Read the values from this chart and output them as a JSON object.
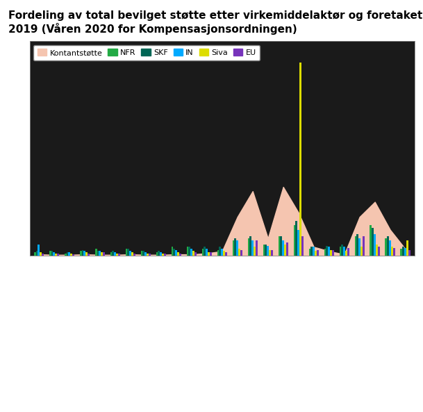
{
  "title_line1": "Fordeling av total bevilget støtte etter virkemiddelaktør og foretakets hovednæring.",
  "title_line2": "2019 (Våren 2020 for Kompensasjonsordningen)",
  "title_fontsize": 11,
  "fig_bg_color": "#ffffff",
  "plot_bg_color": "#1a1a1a",
  "text_color": "#000000",
  "legend_bg": "#ffffff",
  "grid_color": "#ffffff",
  "series": [
    "Kontantstøtte",
    "NFR",
    "SKF",
    "IN",
    "Siva",
    "EU"
  ],
  "colors": [
    "#f5c5b0",
    "#22aa44",
    "#006655",
    "#00aaff",
    "#dddd00",
    "#7733bb"
  ],
  "n_categories": 25,
  "kontantstotte": [
    0.5,
    0.3,
    0.3,
    0.5,
    0.3,
    0.3,
    0.5,
    0.3,
    0.3,
    0.5,
    0.5,
    1,
    2,
    18,
    30,
    8,
    32,
    20,
    4,
    2,
    0.5,
    18,
    25,
    12,
    3
  ],
  "NFR": [
    1.5,
    2,
    1,
    2,
    3,
    1.5,
    3,
    2,
    1.5,
    4,
    4,
    3,
    2.5,
    7,
    8,
    5,
    9,
    14,
    3,
    3,
    4,
    9,
    14,
    8,
    3
  ],
  "SKF": [
    2,
    2,
    1.5,
    2.5,
    2,
    2,
    3,
    2,
    2,
    3,
    4,
    4,
    4,
    8,
    9,
    5,
    9,
    16,
    4,
    4.5,
    5,
    10,
    13,
    9,
    4
  ],
  "IN": [
    5,
    1.5,
    1.5,
    2,
    2,
    1.5,
    2,
    1.5,
    1.5,
    2.5,
    3,
    3,
    3,
    7,
    7,
    4.5,
    7,
    12,
    4,
    4,
    4,
    8,
    10,
    7,
    3.5
  ],
  "Siva": [
    1.5,
    0.8,
    0.8,
    1.5,
    1.5,
    0.8,
    1.5,
    0.8,
    0.8,
    1.5,
    2,
    1.5,
    2,
    3,
    4,
    2.5,
    5,
    90,
    2,
    2.5,
    2,
    4,
    5,
    4,
    7
  ],
  "EU": [
    0.8,
    0.8,
    0.4,
    0.8,
    1.5,
    0.8,
    0.8,
    0.8,
    0.8,
    0.8,
    1.5,
    1.5,
    1.5,
    2.5,
    7,
    2.5,
    6,
    9,
    2.5,
    2.5,
    3.5,
    9,
    4,
    3.5,
    2.5
  ]
}
